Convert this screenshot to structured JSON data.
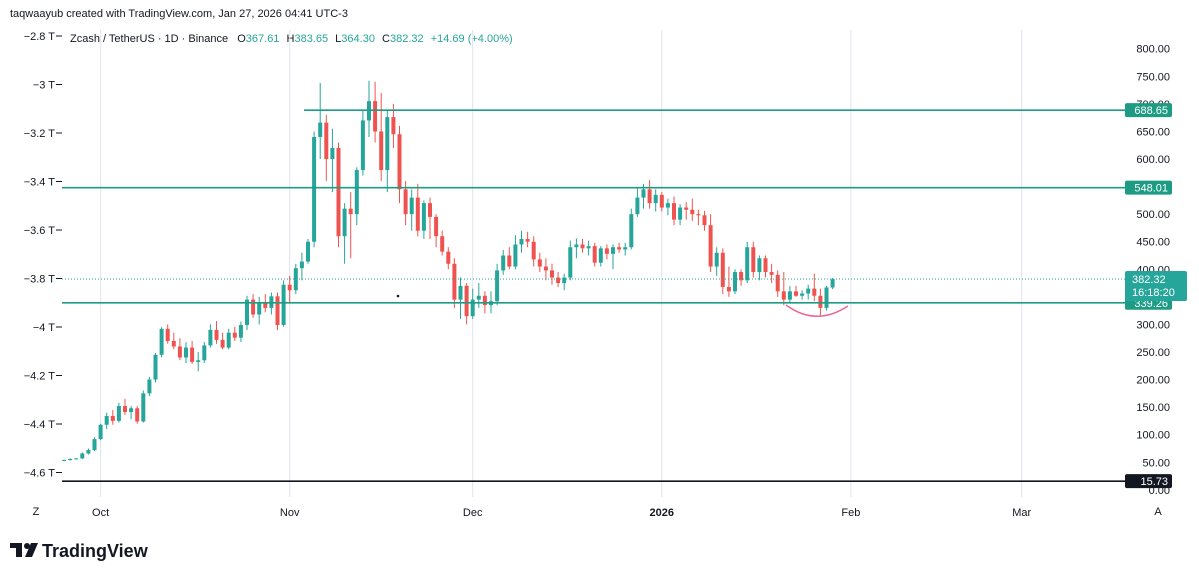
{
  "header": {
    "credit": "taqwaayub created with TradingView.com, Jan 27, 2026 04:41 UTC-3"
  },
  "legend": {
    "symbol": "Zcash / TetherUS · 1D · Binance",
    "o_label": "O",
    "o_value": "367.61",
    "h_label": "H",
    "h_value": "383.65",
    "l_label": "L",
    "l_value": "364.30",
    "c_label": "C",
    "c_value": "382.32",
    "change": "+14.69 (+4.00%)"
  },
  "colors": {
    "up": "#26a69a",
    "down": "#ef5350",
    "line": "#1e9c83",
    "axis_text": "#131722",
    "grid": "#e0e3eb",
    "black_line": "#131722",
    "arc": "#f06292"
  },
  "footer": {
    "brand": "TradingView",
    "z_button": "Z",
    "a_button": "A"
  },
  "chart_data": {
    "type": "candlestick",
    "title": "Zcash / TetherUS · 1D · Binance",
    "right_axis": {
      "ticks": [
        "800.00",
        "750.00",
        "700.00",
        "650.00",
        "600.00",
        "550.00",
        "500.00",
        "450.00",
        "400.00",
        "350.00",
        "300.00",
        "250.00",
        "200.00",
        "150.00",
        "100.00",
        "50.00",
        "0.00"
      ],
      "range": [
        -13,
        834
      ]
    },
    "left_axis": {
      "ticks": [
        "−2.8 T",
        "−3 T",
        "−3.2 T",
        "−3.4 T",
        "−3.6 T",
        "−3.8 T",
        "−4 T",
        "−4.2 T",
        "−4.4 T",
        "−4.6 T"
      ]
    },
    "x_axis": {
      "labels": [
        {
          "text": "Oct",
          "index": 6
        },
        {
          "text": "Nov",
          "index": 37
        },
        {
          "text": "Dec",
          "index": 67
        },
        {
          "text": "2026",
          "index": 98,
          "bold": true
        },
        {
          "text": "Feb",
          "index": 129
        },
        {
          "text": "Mar",
          "index": 157
        }
      ]
    },
    "horizontal_lines": [
      {
        "price": 688.65,
        "label": "688.65",
        "from_index": 40
      },
      {
        "price": 548.01,
        "label": "548.01",
        "from_index": 0
      },
      {
        "price": 339.26,
        "label": "339.26",
        "from_index": 0
      },
      {
        "price": 15.73,
        "label": "15.73",
        "from_index": 0,
        "color": "black"
      }
    ],
    "last_price": {
      "price": 382.32,
      "label": "382.32",
      "countdown": "16:18:20"
    },
    "candles": [
      [
        54,
        55,
        52,
        54
      ],
      [
        54,
        57,
        53,
        56
      ],
      [
        56,
        58,
        55,
        57
      ],
      [
        57,
        68,
        56,
        66
      ],
      [
        66,
        75,
        64,
        72
      ],
      [
        72,
        95,
        70,
        92
      ],
      [
        92,
        120,
        90,
        118
      ],
      [
        118,
        140,
        110,
        134
      ],
      [
        134,
        145,
        118,
        125
      ],
      [
        125,
        158,
        122,
        152
      ],
      [
        152,
        165,
        136,
        141
      ],
      [
        141,
        152,
        128,
        148
      ],
      [
        148,
        152,
        120,
        124
      ],
      [
        124,
        180,
        122,
        175
      ],
      [
        175,
        205,
        170,
        200
      ],
      [
        200,
        248,
        195,
        245
      ],
      [
        245,
        295,
        240,
        292
      ],
      [
        292,
        300,
        265,
        270
      ],
      [
        270,
        285,
        255,
        260
      ],
      [
        260,
        275,
        235,
        240
      ],
      [
        240,
        268,
        230,
        258
      ],
      [
        258,
        270,
        228,
        232
      ],
      [
        232,
        250,
        215,
        235
      ],
      [
        235,
        268,
        230,
        262
      ],
      [
        262,
        300,
        258,
        290
      ],
      [
        290,
        306,
        265,
        272
      ],
      [
        272,
        285,
        255,
        258
      ],
      [
        258,
        292,
        255,
        285
      ],
      [
        285,
        296,
        270,
        276
      ],
      [
        276,
        305,
        268,
        299
      ],
      [
        299,
        352,
        290,
        345
      ],
      [
        345,
        355,
        312,
        318
      ],
      [
        318,
        350,
        300,
        340
      ],
      [
        340,
        355,
        322,
        330
      ],
      [
        330,
        358,
        318,
        351
      ],
      [
        351,
        358,
        290,
        299
      ],
      [
        299,
        380,
        296,
        372
      ],
      [
        372,
        388,
        340,
        362
      ],
      [
        362,
        410,
        355,
        402
      ],
      [
        402,
        430,
        380,
        414
      ],
      [
        414,
        455,
        410,
        450
      ],
      [
        450,
        650,
        440,
        640
      ],
      [
        640,
        738,
        600,
        666
      ],
      [
        666,
        680,
        560,
        600
      ],
      [
        600,
        655,
        540,
        620
      ],
      [
        620,
        630,
        440,
        460
      ],
      [
        460,
        520,
        410,
        510
      ],
      [
        510,
        540,
        420,
        500
      ],
      [
        500,
        585,
        480,
        580
      ],
      [
        580,
        690,
        570,
        670
      ],
      [
        670,
        742,
        640,
        705
      ],
      [
        705,
        740,
        630,
        650
      ],
      [
        650,
        720,
        560,
        580
      ],
      [
        580,
        690,
        540,
        676
      ],
      [
        676,
        700,
        620,
        645
      ],
      [
        645,
        660,
        520,
        545
      ],
      [
        545,
        560,
        480,
        500
      ],
      [
        500,
        545,
        470,
        530
      ],
      [
        530,
        555,
        460,
        470
      ],
      [
        470,
        525,
        455,
        520
      ],
      [
        520,
        530,
        455,
        495
      ],
      [
        495,
        500,
        440,
        460
      ],
      [
        460,
        470,
        425,
        432
      ],
      [
        432,
        440,
        400,
        410
      ],
      [
        410,
        420,
        330,
        345
      ],
      [
        345,
        385,
        310,
        370
      ],
      [
        370,
        375,
        300,
        315
      ],
      [
        315,
        365,
        310,
        345
      ],
      [
        345,
        375,
        330,
        352
      ],
      [
        352,
        360,
        320,
        335
      ],
      [
        335,
        360,
        320,
        342
      ],
      [
        342,
        410,
        335,
        398
      ],
      [
        398,
        435,
        390,
        425
      ],
      [
        425,
        440,
        400,
        405
      ],
      [
        405,
        462,
        400,
        445
      ],
      [
        445,
        470,
        430,
        455
      ],
      [
        455,
        468,
        440,
        450
      ],
      [
        450,
        460,
        405,
        418
      ],
      [
        418,
        430,
        395,
        405
      ],
      [
        405,
        420,
        380,
        398
      ],
      [
        398,
        410,
        372,
        385
      ],
      [
        385,
        395,
        368,
        375
      ],
      [
        375,
        392,
        362,
        385
      ],
      [
        385,
        452,
        380,
        440
      ],
      [
        440,
        456,
        420,
        445
      ],
      [
        445,
        455,
        430,
        438
      ],
      [
        438,
        452,
        425,
        442
      ],
      [
        442,
        448,
        405,
        412
      ],
      [
        412,
        442,
        405,
        438
      ],
      [
        438,
        445,
        418,
        428
      ],
      [
        428,
        445,
        400,
        440
      ],
      [
        440,
        448,
        430,
        436
      ],
      [
        436,
        448,
        425,
        440
      ],
      [
        440,
        510,
        436,
        500
      ],
      [
        500,
        548,
        495,
        530
      ],
      [
        530,
        555,
        510,
        545
      ],
      [
        545,
        562,
        510,
        520
      ],
      [
        520,
        545,
        505,
        535
      ],
      [
        535,
        540,
        505,
        512
      ],
      [
        512,
        528,
        498,
        520
      ],
      [
        520,
        532,
        480,
        490
      ],
      [
        490,
        518,
        480,
        512
      ],
      [
        512,
        522,
        490,
        508
      ],
      [
        508,
        528,
        488,
        500
      ],
      [
        500,
        508,
        480,
        498
      ],
      [
        498,
        506,
        470,
        480
      ],
      [
        480,
        500,
        395,
        405
      ],
      [
        405,
        440,
        388,
        430
      ],
      [
        430,
        438,
        355,
        368
      ],
      [
        368,
        405,
        350,
        360
      ],
      [
        360,
        400,
        355,
        395
      ],
      [
        395,
        400,
        370,
        380
      ],
      [
        380,
        450,
        375,
        440
      ],
      [
        440,
        450,
        385,
        395
      ],
      [
        395,
        425,
        380,
        420
      ],
      [
        420,
        425,
        385,
        395
      ],
      [
        395,
        410,
        375,
        390
      ],
      [
        390,
        398,
        350,
        360
      ],
      [
        360,
        395,
        335,
        345
      ],
      [
        345,
        370,
        338,
        360
      ],
      [
        360,
        370,
        350,
        352
      ],
      [
        352,
        362,
        345,
        356
      ],
      [
        356,
        372,
        345,
        365
      ],
      [
        365,
        392,
        342,
        352
      ],
      [
        352,
        365,
        315,
        330
      ],
      [
        330,
        370,
        325,
        367
      ],
      [
        367,
        384,
        364,
        382
      ]
    ]
  }
}
